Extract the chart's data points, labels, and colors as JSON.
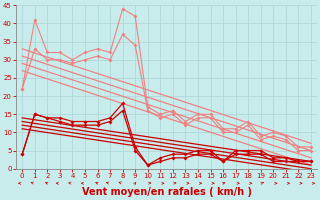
{
  "title": "",
  "xlabel": "Vent moyen/en rafales ( km/h )",
  "ylabel": "",
  "bg_color": "#c8ecec",
  "grid_color": "#b0d8d8",
  "xlim": [
    -0.5,
    23.5
  ],
  "ylim": [
    0,
    45
  ],
  "yticks": [
    0,
    5,
    10,
    15,
    20,
    25,
    30,
    35,
    40,
    45
  ],
  "xticks": [
    0,
    1,
    2,
    3,
    4,
    5,
    6,
    7,
    8,
    9,
    10,
    11,
    12,
    13,
    14,
    15,
    16,
    17,
    18,
    19,
    20,
    21,
    22,
    23
  ],
  "series_light": [
    {
      "x": [
        0,
        1,
        2,
        3,
        4,
        5,
        6,
        7,
        8,
        9,
        10,
        11,
        12,
        13,
        14,
        15,
        16,
        17,
        18,
        19,
        20,
        21,
        22,
        23
      ],
      "y": [
        22,
        41,
        32,
        32,
        30,
        32,
        33,
        32,
        44,
        42,
        17,
        15,
        16,
        13,
        15,
        15,
        11,
        11,
        13,
        9,
        10,
        9,
        6,
        6
      ],
      "color": "#f08080",
      "lw": 0.8,
      "marker": "D",
      "ms": 2.0
    },
    {
      "x": [
        0,
        1,
        2,
        3,
        4,
        5,
        6,
        7,
        8,
        9,
        10,
        11,
        12,
        13,
        14,
        15,
        16,
        17,
        18,
        19,
        20,
        21,
        22,
        23
      ],
      "y": [
        22,
        33,
        30,
        30,
        29,
        30,
        31,
        30,
        37,
        34,
        16,
        14,
        15,
        12,
        14,
        14,
        10,
        10,
        12,
        8,
        9,
        8,
        5,
        5
      ],
      "color": "#f08080",
      "lw": 0.8,
      "marker": "D",
      "ms": 2.0
    },
    {
      "x": [
        0,
        23
      ],
      "y": [
        33,
        7
      ],
      "color": "#f08080",
      "lw": 0.9,
      "marker": null,
      "ms": 0
    },
    {
      "x": [
        0,
        23
      ],
      "y": [
        31,
        5
      ],
      "color": "#f08080",
      "lw": 0.9,
      "marker": null,
      "ms": 0
    },
    {
      "x": [
        0,
        23
      ],
      "y": [
        29,
        3
      ],
      "color": "#f08080",
      "lw": 0.9,
      "marker": null,
      "ms": 0
    },
    {
      "x": [
        0,
        23
      ],
      "y": [
        27,
        1
      ],
      "color": "#f08080",
      "lw": 0.9,
      "marker": null,
      "ms": 0
    }
  ],
  "series_dark": [
    {
      "x": [
        0,
        1,
        2,
        3,
        4,
        5,
        6,
        7,
        8,
        9,
        10,
        11,
        12,
        13,
        14,
        15,
        16,
        17,
        18,
        19,
        20,
        21,
        22,
        23
      ],
      "y": [
        4,
        15,
        14,
        14,
        13,
        13,
        13,
        14,
        18,
        6,
        1,
        3,
        4,
        4,
        5,
        5,
        2,
        5,
        5,
        5,
        3,
        3,
        2,
        2
      ],
      "color": "#cc0000",
      "lw": 0.9,
      "marker": "D",
      "ms": 2.0
    },
    {
      "x": [
        0,
        1,
        2,
        3,
        4,
        5,
        6,
        7,
        8,
        9,
        10,
        11,
        12,
        13,
        14,
        15,
        16,
        17,
        18,
        19,
        20,
        21,
        22,
        23
      ],
      "y": [
        4,
        15,
        14,
        13,
        12,
        12,
        12,
        13,
        16,
        5,
        1,
        2,
        3,
        3,
        4,
        4,
        2,
        4,
        4,
        4,
        2,
        2,
        2,
        2
      ],
      "color": "#cc0000",
      "lw": 0.9,
      "marker": "D",
      "ms": 2.0
    },
    {
      "x": [
        0,
        23
      ],
      "y": [
        14,
        2
      ],
      "color": "#cc0000",
      "lw": 0.9,
      "marker": null,
      "ms": 0
    },
    {
      "x": [
        0,
        23
      ],
      "y": [
        13,
        1
      ],
      "color": "#cc0000",
      "lw": 0.9,
      "marker": null,
      "ms": 0
    },
    {
      "x": [
        0,
        23
      ],
      "y": [
        12,
        0
      ],
      "color": "#cc0000",
      "lw": 0.9,
      "marker": null,
      "ms": 0
    },
    {
      "x": [
        0,
        23
      ],
      "y": [
        11,
        -1
      ],
      "color": "#cc0000",
      "lw": 0.9,
      "marker": null,
      "ms": 0
    }
  ],
  "arrow_color": "#cc0000",
  "xlabel_color": "#cc0000",
  "xlabel_fontsize": 7,
  "tick_fontsize": 5,
  "tick_color": "#cc0000",
  "spine_color": "#888888"
}
